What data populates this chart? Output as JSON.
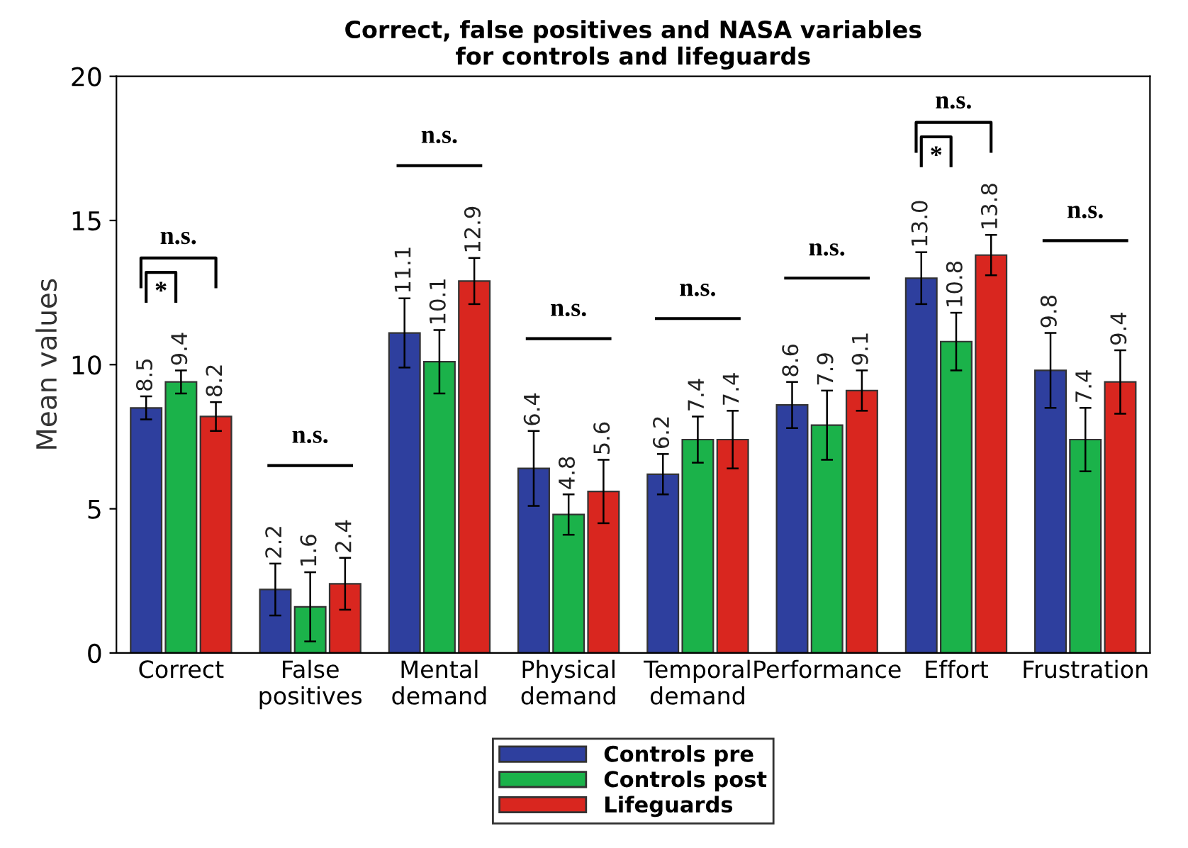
{
  "chart_data": {
    "type": "bar",
    "title": "Correct, false positives and NASA variables\nfor controls and lifeguards",
    "ylabel": "Mean values",
    "categories": [
      "Correct",
      "False\npositives",
      "Mental\ndemand",
      "Physical\ndemand",
      "Temporal\ndemand",
      "Performance",
      "Effort",
      "Frustration"
    ],
    "series": [
      {
        "name": "Controls pre",
        "color": "#2e3f9e",
        "values": [
          8.5,
          2.2,
          11.1,
          6.4,
          6.2,
          8.6,
          13.0,
          9.8
        ],
        "value_labels": [
          "8.5",
          "2.2",
          "11.1",
          "6.4",
          "6.2",
          "8.6",
          "13.0",
          "9.8"
        ],
        "errors": [
          0.4,
          0.9,
          1.2,
          1.3,
          0.7,
          0.8,
          0.9,
          1.3
        ]
      },
      {
        "name": "Controls post",
        "color": "#1bb24a",
        "values": [
          9.4,
          1.6,
          10.1,
          4.8,
          7.4,
          7.9,
          10.8,
          7.4
        ],
        "value_labels": [
          "9.4",
          "1.6",
          "10.1",
          "4.8",
          "7.4",
          "7.9",
          "10.8",
          "7.4"
        ],
        "errors": [
          0.4,
          1.2,
          1.1,
          0.7,
          0.8,
          1.2,
          1.0,
          1.1
        ]
      },
      {
        "name": "Lifeguards",
        "color": "#d9261f",
        "values": [
          8.2,
          2.4,
          12.9,
          5.6,
          7.4,
          9.1,
          13.8,
          9.4
        ],
        "value_labels": [
          "8.2",
          "2.4",
          "12.9",
          "5.6",
          "7.4",
          "9.1",
          "13.8",
          "9.4"
        ],
        "errors": [
          0.5,
          0.9,
          0.8,
          1.1,
          1.0,
          0.7,
          0.7,
          1.1
        ]
      }
    ],
    "ylim": [
      0,
      20
    ],
    "yticks": [
      0,
      5,
      10,
      15,
      20
    ],
    "grid": false,
    "legend": "bottom",
    "annotations": [
      "n.s.",
      "*",
      "n.s.",
      "n.s.",
      "n.s.",
      "n.s.",
      "n.s.",
      "n.s.",
      "*",
      "n.s."
    ]
  }
}
